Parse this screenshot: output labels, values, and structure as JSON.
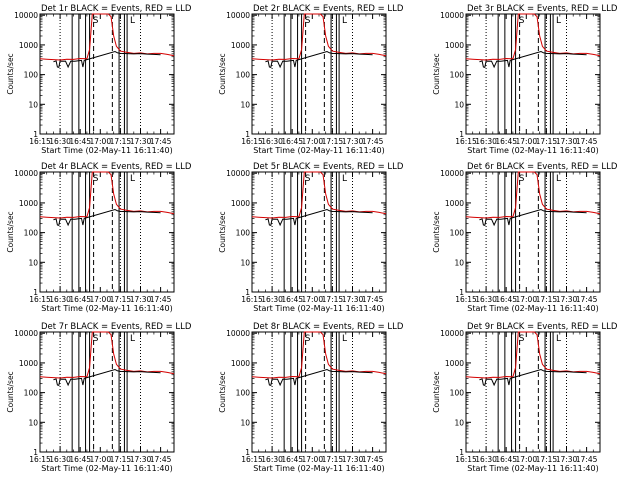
{
  "chart_data": {
    "type": "line",
    "layout_grid": "3x3",
    "xlabel": "Start Time (02-May-11 16:11:40)",
    "ylabel": "Counts/sec",
    "x_ticks": [
      "16:15",
      "16:30",
      "16:45",
      "17:00",
      "17:15",
      "17:30",
      "17:45"
    ],
    "x_tick_minutes": [
      15,
      30,
      45,
      60,
      75,
      90,
      105
    ],
    "xlim_minutes": [
      15,
      115
    ],
    "y_ticks": [
      "1",
      "10",
      "100",
      "1000",
      "10000"
    ],
    "y_tick_values": [
      1,
      10,
      100,
      1000,
      10000
    ],
    "ylim": [
      1,
      11000
    ],
    "y_scale": "log",
    "markers": {
      "dotted": [
        30,
        75,
        90
      ],
      "dashed": [
        55,
        69
      ],
      "solid": [
        39,
        44,
        49,
        52,
        74,
        78,
        80
      ]
    },
    "annotations": [
      "S",
      "L"
    ],
    "colors": {
      "events": "#000000",
      "lld": "#d40000",
      "axes": "#000000",
      "background": "#ffffff"
    },
    "panels": [
      {
        "title": "Det 1r BLACK = Events, RED = LLD"
      },
      {
        "title": "Det 2r BLACK = Events, RED = LLD"
      },
      {
        "title": "Det 3r BLACK = Events, RED = LLD"
      },
      {
        "title": "Det 4r BLACK = Events, RED = LLD"
      },
      {
        "title": "Det 5r BLACK = Events, RED = LLD"
      },
      {
        "title": "Det 6r BLACK = Events, RED = LLD"
      },
      {
        "title": "Det 7r BLACK = Events, RED = LLD"
      },
      {
        "title": "Det 8r BLACK = Events, RED = LLD"
      },
      {
        "title": "Det 9r BLACK = Events, RED = LLD"
      }
    ],
    "series": [
      {
        "name": "LLD",
        "color": "#d40000",
        "x": [
          15,
          20,
          25,
          30,
          35,
          40,
          45,
          50,
          52,
          54,
          56,
          58,
          60,
          62,
          64,
          66,
          68,
          70,
          72,
          75,
          80,
          85,
          90,
          95,
          100,
          105,
          110,
          115
        ],
        "values": [
          340,
          330,
          320,
          310,
          330,
          325,
          350,
          340,
          700,
          12000,
          12000,
          12000,
          12000,
          12000,
          12000,
          12000,
          9000,
          2000,
          900,
          620,
          560,
          520,
          540,
          500,
          520,
          520,
          480,
          430
        ]
      },
      {
        "name": "Events",
        "color": "#000000",
        "x": [
          25,
          27,
          28,
          29,
          30,
          31,
          34,
          36,
          38,
          41,
          43,
          46,
          47,
          48,
          49,
          71,
          73,
          75,
          80,
          85,
          90,
          95,
          100,
          105
        ],
        "values": [
          270,
          290,
          180,
          175,
          290,
          280,
          285,
          180,
          285,
          280,
          290,
          300,
          180,
          300,
          310,
          600,
          540,
          520,
          510,
          500,
          510,
          490,
          480,
          470
        ]
      }
    ]
  }
}
